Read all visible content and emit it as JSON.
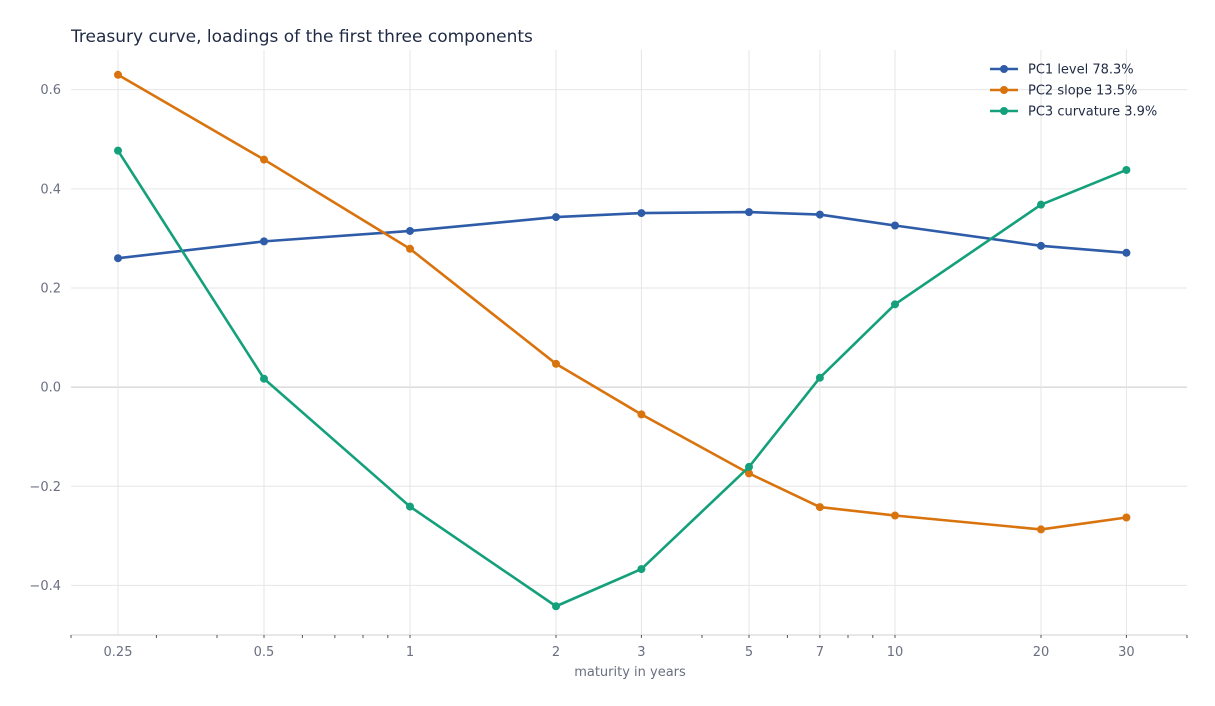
{
  "chart_data": {
    "type": "line",
    "title": "Treasury curve, loadings of the first three components",
    "xlabel": "maturity in years",
    "ylabel": "",
    "x_scale": "log",
    "x": [
      0.25,
      0.5,
      1,
      2,
      3,
      5,
      7,
      10,
      20,
      30
    ],
    "x_tick_labels": [
      "0.25",
      "0.5",
      "1",
      "2",
      "3",
      "5",
      "7",
      "10",
      "20",
      "30"
    ],
    "xlim": [
      0.2,
      40
    ],
    "ylim": [
      -0.5,
      0.68
    ],
    "y_ticks": [
      -0.4,
      -0.2,
      0.0,
      0.2,
      0.4,
      0.6
    ],
    "y_tick_labels": [
      "−0.4",
      "−0.2",
      "0.0",
      "0.2",
      "0.4",
      "0.6"
    ],
    "grid": true,
    "legend_position": "top-right",
    "series": [
      {
        "name": "PC1  level  78.3%",
        "color": "#2f5ca8",
        "values": [
          0.26,
          0.294,
          0.315,
          0.343,
          0.351,
          0.353,
          0.348,
          0.326,
          0.285,
          0.271
        ]
      },
      {
        "name": "PC2  slope  13.5%",
        "color": "#d9730d",
        "values": [
          0.63,
          0.459,
          0.279,
          0.047,
          -0.055,
          -0.174,
          -0.242,
          -0.259,
          -0.287,
          -0.263
        ]
      },
      {
        "name": "PC3  curvature  3.9%",
        "color": "#13a07a",
        "values": [
          0.477,
          0.017,
          -0.241,
          -0.442,
          -0.367,
          -0.161,
          0.019,
          0.167,
          0.368,
          0.438
        ]
      }
    ]
  }
}
